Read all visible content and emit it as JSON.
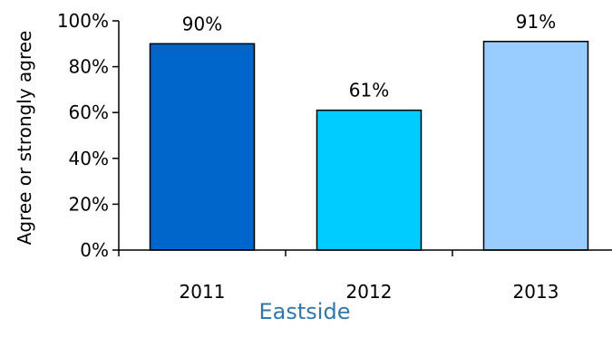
{
  "chart_data": {
    "type": "bar",
    "title": "Eastside",
    "ylabel": "Agree or strongly agree",
    "xlabel": "",
    "categories": [
      "2011",
      "2012",
      "2013"
    ],
    "values": [
      90,
      61,
      91
    ],
    "data_labels": [
      "90%",
      "61%",
      "91%"
    ],
    "ylim": [
      0,
      100
    ],
    "yticks": [
      0,
      20,
      40,
      60,
      80,
      100
    ],
    "ytick_labels": [
      "0%",
      "20%",
      "40%",
      "60%",
      "80%",
      "100%"
    ],
    "grid": false,
    "legend": "none",
    "bar_colors": [
      "#0066CC",
      "#00CCFF",
      "#99CCFF"
    ],
    "title_color": "#3377AA"
  }
}
